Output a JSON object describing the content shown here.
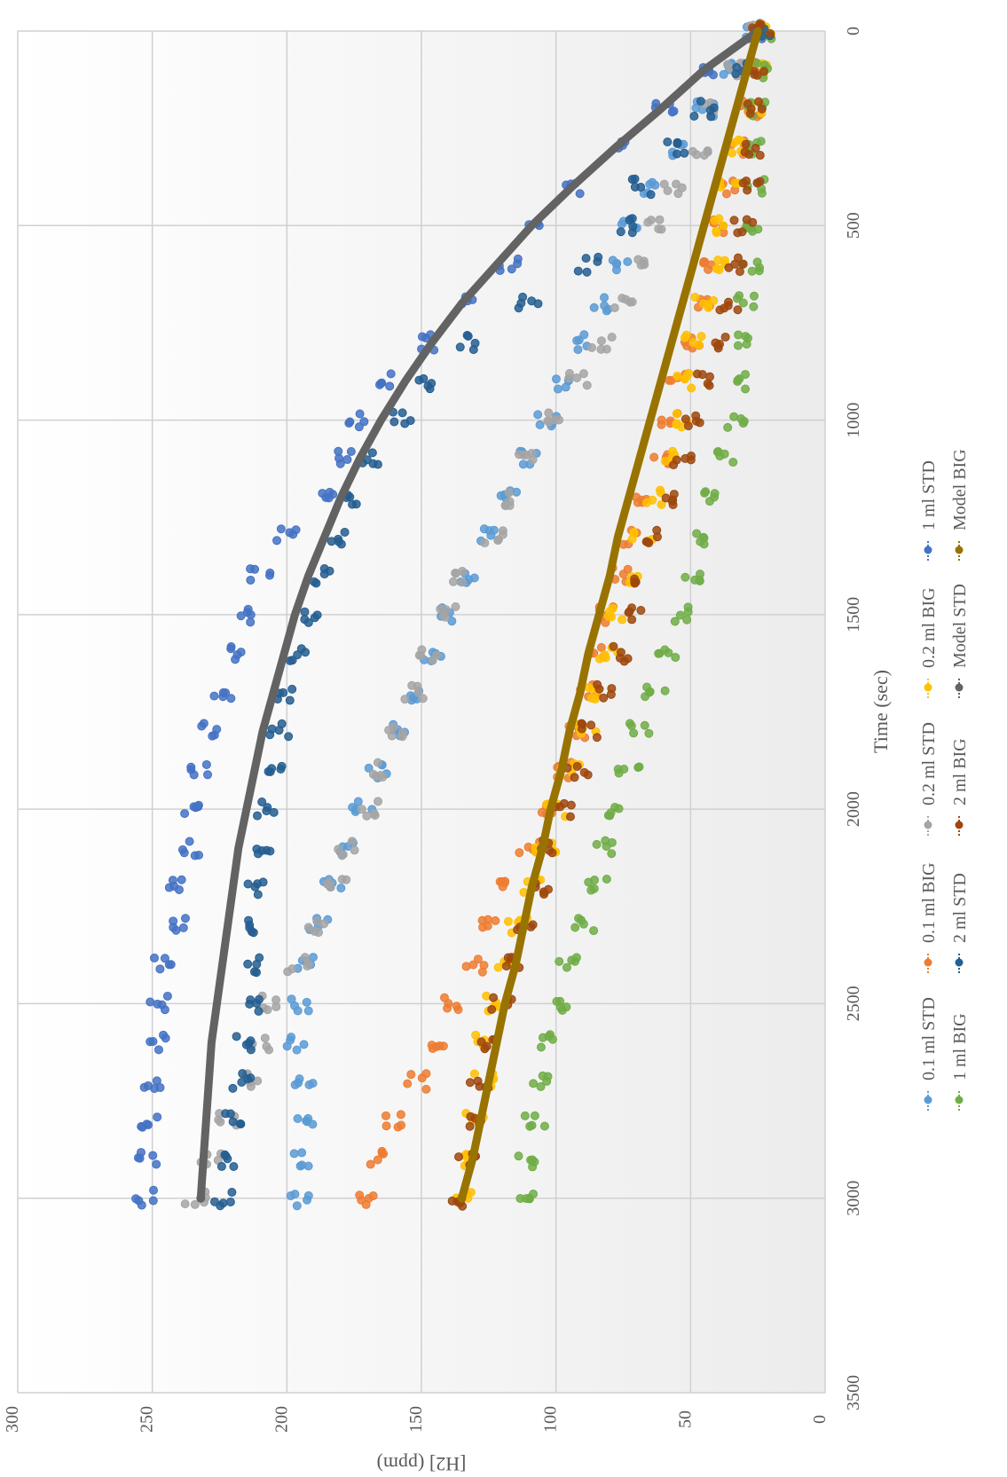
{
  "chart_data": {
    "type": "scatter",
    "orientation": "rotated-90-clockwise",
    "xlabel": "Time (sec)",
    "ylabel": "[H2] (ppm)",
    "xlim": [
      0,
      3500
    ],
    "ylim": [
      0,
      300
    ],
    "xticks": [
      0,
      500,
      1000,
      1500,
      2000,
      2500,
      3000,
      3500
    ],
    "yticks": [
      0,
      50,
      100,
      150,
      200,
      250,
      300
    ],
    "grid": true,
    "legend_position": "bottom",
    "colors": {
      "0.1 ml STD": "#5b9bd5",
      "0.1 ml BIG": "#ed7d31",
      "0.2 ml STD": "#a5a5a5",
      "0.2 ml BIG": "#ffc000",
      "1 ml STD": "#4472c4",
      "1 ml BIG": "#70ad47",
      "2 ml STD": "#255e91",
      "2 ml BIG": "#9e480e",
      "Model STD": "#636363",
      "Model BIG": "#997300"
    },
    "series": [
      {
        "name": "0.1 ml STD",
        "style": "markers",
        "x": [
          0,
          100,
          200,
          300,
          400,
          500,
          600,
          700,
          800,
          900,
          1000,
          1100,
          1200,
          1300,
          1400,
          1500,
          1600,
          1700,
          1800,
          1900,
          2000,
          2100,
          2200,
          2300,
          2400,
          2500,
          2600,
          2700,
          2800,
          2900,
          3000
        ],
        "y": [
          26,
          36,
          45,
          54,
          64,
          72,
          77,
          84,
          90,
          96,
          103,
          110,
          117,
          124,
          132,
          139,
          146,
          154,
          160,
          166,
          172,
          178,
          183,
          188,
          193,
          195,
          197,
          194,
          193,
          194,
          195
        ]
      },
      {
        "name": "0.1 ml BIG",
        "style": "markers",
        "x": [
          0,
          100,
          200,
          300,
          400,
          500,
          600,
          700,
          800,
          900,
          1000,
          1100,
          1200,
          1300,
          1400,
          1500,
          1600,
          1700,
          1800,
          1900,
          2000,
          2100,
          2200,
          2300,
          2400,
          2500,
          2600,
          2700,
          2800,
          2900,
          3000
        ],
        "y": [
          24,
          26,
          28,
          31,
          35,
          38,
          42,
          46,
          49,
          54,
          57,
          62,
          67,
          71,
          76,
          80,
          84,
          88,
          93,
          98,
          104,
          110,
          118,
          124,
          130,
          138,
          145,
          152,
          160,
          166,
          170
        ]
      },
      {
        "name": "0.2 ml STD",
        "style": "markers",
        "x": [
          0,
          100,
          200,
          300,
          400,
          500,
          600,
          700,
          800,
          900,
          1000,
          1100,
          1200,
          1300,
          1400,
          1500,
          1600,
          1700,
          1800,
          1900,
          2000,
          2100,
          2200,
          2300,
          2400,
          2500,
          2600,
          2700,
          2800,
          2900,
          3000
        ],
        "y": [
          25,
          34,
          42,
          46,
          56,
          63,
          70,
          75,
          83,
          92,
          101,
          110,
          117,
          123,
          135,
          141,
          147,
          153,
          160,
          165,
          170,
          177,
          181,
          190,
          196,
          206,
          210,
          214,
          222,
          228,
          234
        ]
      },
      {
        "name": "0.2 ml BIG",
        "style": "markers",
        "x": [
          0,
          100,
          200,
          300,
          400,
          500,
          600,
          700,
          800,
          900,
          1000,
          1100,
          1200,
          1300,
          1400,
          1500,
          1600,
          1700,
          1800,
          1900,
          2000,
          2100,
          2200,
          2300,
          2400,
          2500,
          2600,
          2700,
          2800,
          2900,
          3000
        ],
        "y": [
          23,
          25,
          27,
          32,
          36,
          38,
          41,
          45,
          49,
          52,
          55,
          59,
          63,
          68,
          73,
          77,
          80,
          84,
          89,
          95,
          100,
          104,
          108,
          114,
          118,
          124,
          126,
          127,
          130,
          132,
          134
        ]
      },
      {
        "name": "1 ml STD",
        "style": "markers",
        "x": [
          0,
          100,
          200,
          300,
          400,
          500,
          600,
          700,
          800,
          900,
          1000,
          1100,
          1200,
          1300,
          1400,
          1500,
          1600,
          1700,
          1800,
          1900,
          2000,
          2100,
          2200,
          2300,
          2400,
          2500,
          2600,
          2700,
          2800,
          2900,
          3000
        ],
        "y": [
          26,
          42,
          60,
          75,
          95,
          107,
          118,
          134,
          147,
          162,
          174,
          180,
          184,
          200,
          210,
          217,
          220,
          224,
          229,
          232,
          235,
          236,
          240,
          241,
          246,
          247,
          249,
          250,
          251,
          252,
          253
        ]
      },
      {
        "name": "1 ml BIG",
        "style": "markers",
        "x": [
          0,
          100,
          200,
          300,
          400,
          500,
          600,
          700,
          800,
          900,
          1000,
          1100,
          1200,
          1300,
          1400,
          1500,
          1600,
          1700,
          1800,
          1900,
          2000,
          2100,
          2200,
          2300,
          2400,
          2500,
          2600,
          2700,
          2800,
          2900,
          3000
        ],
        "y": [
          22,
          24,
          25,
          25,
          26,
          27,
          28,
          29,
          30,
          31,
          33,
          37,
          41,
          45,
          49,
          53,
          58,
          63,
          69,
          73,
          77,
          83,
          85,
          89,
          95,
          100,
          103,
          105,
          108,
          111,
          112
        ]
      },
      {
        "name": "2 ml STD",
        "style": "markers",
        "x": [
          0,
          100,
          200,
          300,
          400,
          500,
          600,
          700,
          800,
          900,
          1000,
          1100,
          1200,
          1300,
          1400,
          1500,
          1600,
          1700,
          1800,
          1900,
          2000,
          2100,
          2200,
          2300,
          2400,
          2500,
          2600,
          2700,
          2800,
          2900,
          3000
        ],
        "y": [
          24,
          30,
          45,
          55,
          68,
          74,
          88,
          110,
          133,
          148,
          158,
          168,
          175,
          181,
          186,
          192,
          197,
          200,
          203,
          204,
          208,
          209,
          211,
          211,
          212,
          214,
          215,
          217,
          219,
          221,
          224
        ]
      },
      {
        "name": "2 ml BIG",
        "style": "markers",
        "x": [
          0,
          100,
          200,
          300,
          400,
          500,
          600,
          700,
          800,
          900,
          1000,
          1100,
          1200,
          1300,
          1400,
          1500,
          1600,
          1700,
          1800,
          1900,
          2000,
          2100,
          2200,
          2300,
          2400,
          2500,
          2600,
          2700,
          2800,
          2900,
          3000
        ],
        "y": [
          24,
          26,
          27,
          27,
          28,
          30,
          33,
          36,
          40,
          44,
          48,
          53,
          58,
          63,
          68,
          72,
          76,
          82,
          87,
          92,
          98,
          102,
          106,
          111,
          115,
          120,
          124,
          128,
          131,
          133,
          135
        ]
      },
      {
        "name": "Model STD",
        "style": "line",
        "x": [
          0,
          100,
          200,
          300,
          400,
          500,
          600,
          700,
          800,
          900,
          1000,
          1100,
          1200,
          1300,
          1400,
          1500,
          1600,
          1700,
          1800,
          1900,
          2000,
          2100,
          2200,
          2300,
          2400,
          2500,
          2600,
          2700,
          2800,
          2900,
          3000
        ],
        "y": [
          25,
          45,
          61,
          78,
          94,
          109,
          122,
          135,
          146,
          156,
          165,
          173,
          180,
          186,
          192,
          197,
          201,
          205,
          209,
          212,
          215,
          218,
          220,
          222,
          224,
          226,
          228,
          229,
          230,
          231,
          232
        ]
      },
      {
        "name": "Model BIG",
        "style": "line",
        "x": [
          0,
          100,
          200,
          300,
          400,
          500,
          600,
          700,
          800,
          900,
          1000,
          1100,
          1200,
          1300,
          1400,
          1500,
          1600,
          1700,
          1800,
          1900,
          2000,
          2100,
          2200,
          2300,
          2400,
          2500,
          2600,
          2700,
          2800,
          2900,
          3000
        ],
        "y": [
          25,
          29,
          33,
          37,
          41,
          45,
          49,
          53,
          57,
          61,
          65,
          69,
          73,
          77,
          80,
          84,
          88,
          91,
          95,
          98,
          102,
          105,
          109,
          112,
          115,
          119,
          122,
          125,
          128,
          131,
          135
        ]
      }
    ]
  }
}
